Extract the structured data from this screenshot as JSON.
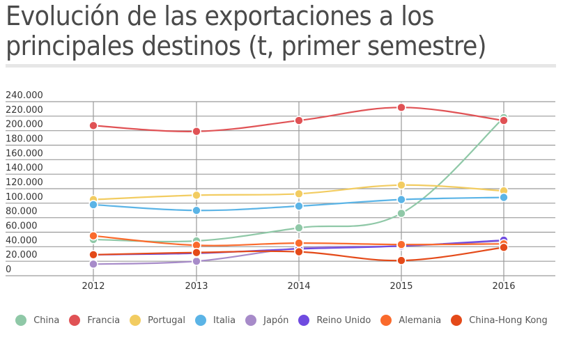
{
  "title": "Evolución de las exportaciones a los principales destinos (t, primer semestre)",
  "title_lines": [
    "Evolución de las exportaciones a los",
    "principales destinos (t, primer semestre)"
  ],
  "chart_data": {
    "type": "line",
    "title": "Evolución de las exportaciones a los principales destinos (t, primer semestre)",
    "xlabel": "",
    "ylabel": "",
    "categories": [
      "2012",
      "2013",
      "2014",
      "2015",
      "2016"
    ],
    "ylim": [
      0,
      240000
    ],
    "yticks": [
      0,
      20000,
      40000,
      60000,
      80000,
      100000,
      120000,
      140000,
      160000,
      180000,
      200000,
      220000,
      240000
    ],
    "ytick_labels": [
      "0",
      "20.000",
      "40.000",
      "60.000",
      "80.000",
      "100.000",
      "120.000",
      "140.000",
      "160.000",
      "180.000",
      "200.000",
      "220.000",
      "240.000"
    ],
    "grid": true,
    "legend_position": "bottom",
    "series": [
      {
        "name": "China",
        "color": "#8fc8a7",
        "values": [
          50000,
          48000,
          66000,
          86000,
          218000
        ]
      },
      {
        "name": "Francia",
        "color": "#e05255",
        "values": [
          207000,
          199000,
          214000,
          232000,
          214000
        ]
      },
      {
        "name": "Portugal",
        "color": "#f2cc61",
        "values": [
          105000,
          111000,
          113000,
          125000,
          117000
        ]
      },
      {
        "name": "Italia",
        "color": "#5bb4e6",
        "values": [
          98000,
          90000,
          96000,
          105000,
          108000
        ]
      },
      {
        "name": "Japón",
        "color": "#a78bc9",
        "values": [
          16000,
          20000,
          38000,
          41000,
          48000
        ]
      },
      {
        "name": "Reino Unido",
        "color": "#6f4be0",
        "values": [
          29000,
          31000,
          37000,
          41000,
          49000
        ]
      },
      {
        "name": "Alemania",
        "color": "#fa6a2c",
        "values": [
          55000,
          42000,
          45000,
          43000,
          44000
        ]
      },
      {
        "name": "China-Hong Kong",
        "color": "#e44a19",
        "values": [
          29000,
          32000,
          33000,
          21000,
          39000
        ]
      }
    ]
  }
}
